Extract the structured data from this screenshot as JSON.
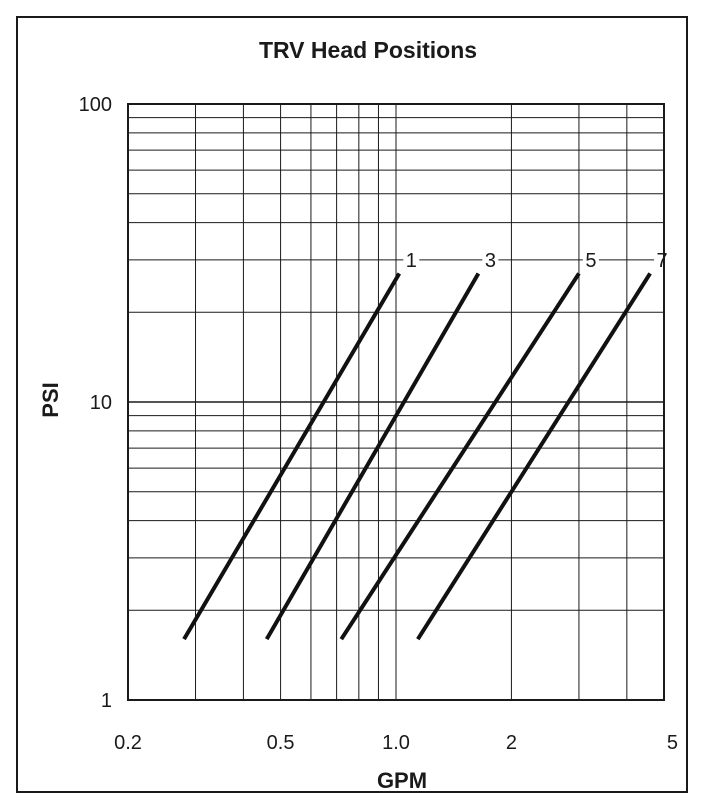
{
  "chart_data": {
    "type": "line",
    "title": "TRV Head Positions",
    "xlabel": "GPM",
    "ylabel": "PSI",
    "xscale": "log",
    "yscale": "log",
    "xlim": [
      0.2,
      5
    ],
    "ylim": [
      1,
      100
    ],
    "grid": true,
    "legend": "none",
    "x_ticks": [
      {
        "value": 0.2,
        "label": "0.2"
      },
      {
        "value": 0.5,
        "label": "0.5"
      },
      {
        "value": 1.0,
        "label": "1.0"
      },
      {
        "value": 2,
        "label": "2"
      },
      {
        "value": 5,
        "label": "5"
      }
    ],
    "y_ticks": [
      {
        "value": 1,
        "label": "1"
      },
      {
        "value": 10,
        "label": "10"
      },
      {
        "value": 100,
        "label": "100"
      }
    ],
    "series": [
      {
        "name": "1",
        "x": [
          0.28,
          1.02
        ],
        "y": [
          1.6,
          27
        ]
      },
      {
        "name": "3",
        "x": [
          0.46,
          1.64
        ],
        "y": [
          1.6,
          27
        ]
      },
      {
        "name": "5",
        "x": [
          0.72,
          3.0
        ],
        "y": [
          1.6,
          27
        ]
      },
      {
        "name": "7",
        "x": [
          1.14,
          4.6
        ],
        "y": [
          1.6,
          27
        ]
      }
    ],
    "label_level": 30
  }
}
